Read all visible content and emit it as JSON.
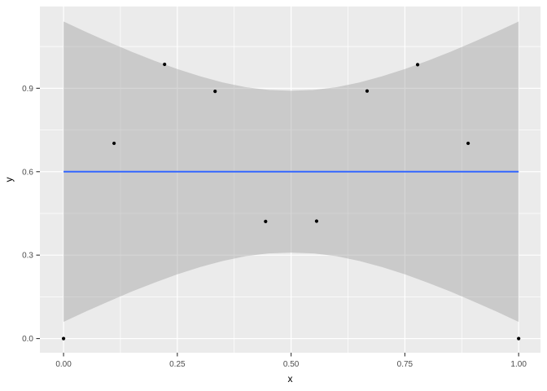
{
  "chart_data": {
    "type": "scatter",
    "xlabel": "x",
    "ylabel": "y",
    "points": [
      {
        "x": 0.0,
        "y": 0.0
      },
      {
        "x": 0.111,
        "y": 0.702
      },
      {
        "x": 0.222,
        "y": 0.986
      },
      {
        "x": 0.333,
        "y": 0.889
      },
      {
        "x": 0.444,
        "y": 0.421
      },
      {
        "x": 0.556,
        "y": 0.422
      },
      {
        "x": 0.667,
        "y": 0.89
      },
      {
        "x": 0.778,
        "y": 0.985
      },
      {
        "x": 0.889,
        "y": 0.702
      },
      {
        "x": 1.0,
        "y": 0.0
      }
    ],
    "smooth_line": {
      "x0": 0,
      "y0": 0.6,
      "x1": 1,
      "y1": 0.6,
      "color": "#3366FF",
      "width": 2
    },
    "confidence_band": {
      "fill": "#999999",
      "opacity": 0.4,
      "x": [
        0.0,
        0.05,
        0.1,
        0.15,
        0.2,
        0.25,
        0.3,
        0.35,
        0.4,
        0.45,
        0.5,
        0.55,
        0.6,
        0.65,
        0.7,
        0.75,
        0.8,
        0.85,
        0.9,
        0.95,
        1.0
      ],
      "upper": [
        1.14,
        1.102,
        1.066,
        1.031,
        0.999,
        0.969,
        0.943,
        0.921,
        0.904,
        0.894,
        0.891,
        0.894,
        0.904,
        0.921,
        0.943,
        0.969,
        0.999,
        1.031,
        1.066,
        1.102,
        1.14
      ],
      "lower": [
        0.06,
        0.098,
        0.134,
        0.169,
        0.201,
        0.231,
        0.257,
        0.279,
        0.296,
        0.306,
        0.309,
        0.306,
        0.296,
        0.279,
        0.257,
        0.231,
        0.201,
        0.169,
        0.134,
        0.098,
        0.06
      ]
    },
    "x_ticks": {
      "values": [
        0,
        0.25,
        0.5,
        0.75,
        1
      ],
      "labels": [
        "0.00",
        "0.25",
        "0.50",
        "0.75",
        "1.00"
      ]
    },
    "y_ticks": {
      "values": [
        0,
        0.3,
        0.6,
        0.9
      ],
      "labels": [
        "0.0",
        "0.3",
        "0.6",
        "0.9"
      ]
    },
    "x_minor": [
      0.125,
      0.375,
      0.625,
      0.875
    ],
    "y_minor": [
      0.15,
      0.45,
      0.75,
      1.05
    ],
    "xlim": [
      -0.052,
      1.048
    ],
    "ylim": [
      -0.051,
      1.194
    ],
    "grid": true,
    "legend": "none",
    "theme": {
      "outer_bg": "#FFFFFF",
      "panel_bg": "#EBEBEB",
      "grid_color": "#FFFFFF",
      "point_color": "#000000",
      "tick_mark_color": "#333333",
      "tick_label_color": "#4D4D4D",
      "axis_title_color": "#000000"
    }
  }
}
